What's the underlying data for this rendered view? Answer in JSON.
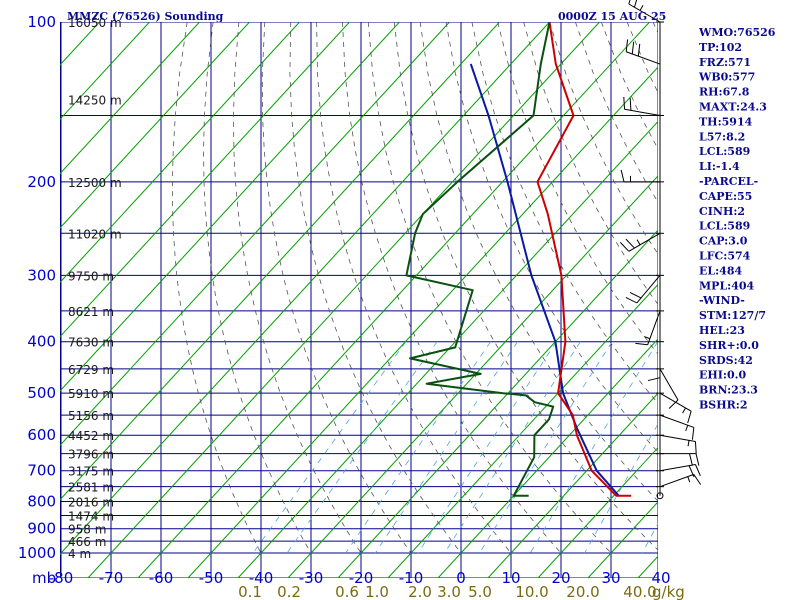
{
  "title": "MMZC (76526) Sounding",
  "datetime": "0000Z 15 AUG 25",
  "colors": {
    "grid": "#00008b",
    "isotherm": "#00a000",
    "dry_adiabat": "#555555",
    "mixing_ratio": "#4ea3e0",
    "temperature": "#cc0000",
    "dewpoint": "#0a5010",
    "parcel": "#0a1aa0",
    "pressure_labels": "#0000cc",
    "mixing_labels": "#7a6a10"
  },
  "chart_data": {
    "type": "skew-t",
    "x_axis_unit_label": "mb",
    "temperature_ticks": [
      -80,
      -70,
      -60,
      -50,
      -40,
      -30,
      -20,
      -10,
      0,
      10,
      20,
      30,
      40
    ],
    "temperature_labels": [
      "-80",
      "-70",
      "-60",
      "-50",
      "-40",
      "-30",
      "-20",
      "-10",
      "0",
      "10",
      "20",
      "30",
      "40"
    ],
    "pressure_levels": [
      100,
      200,
      300,
      400,
      500,
      600,
      700,
      800,
      900,
      1000
    ],
    "pressure_labels": [
      "100",
      "200",
      "300",
      "400",
      "500",
      "600",
      "700",
      "800",
      "900",
      "1000"
    ],
    "height_labels": [
      "16050 m",
      "14250 m",
      "12500 m",
      "11020 m",
      "9750 m",
      "8621 m",
      "7630 m",
      "6729 m",
      "5910 m",
      "5156 m",
      "4452 m",
      "3796 m",
      "3175 m",
      "2581 m",
      "2016 m",
      "1474 m",
      "958 m",
      "466 m",
      "4 m"
    ],
    "mixing_ratio_labels": [
      "0.1",
      "0.2",
      "0.6",
      "1.0",
      "2.0",
      "3.0",
      "5.0",
      "10.0",
      "20.0",
      "40.0"
    ],
    "mixing_ratio_unit": "g/kg",
    "temperature_profile": [
      {
        "p": 100,
        "t": -80
      },
      {
        "p": 120,
        "t": -71
      },
      {
        "p": 150,
        "t": -58
      },
      {
        "p": 200,
        "t": -53
      },
      {
        "p": 230,
        "t": -45
      },
      {
        "p": 300,
        "t": -31
      },
      {
        "p": 400,
        "t": -18
      },
      {
        "p": 500,
        "t": -10
      },
      {
        "p": 550,
        "t": -3
      },
      {
        "p": 600,
        "t": 1.5
      },
      {
        "p": 700,
        "t": 11
      },
      {
        "p": 780,
        "t": 20.5
      },
      {
        "p": 780,
        "t": 23.5
      }
    ],
    "dewpoint_profile": [
      {
        "p": 100,
        "t": -80
      },
      {
        "p": 120,
        "t": -74
      },
      {
        "p": 150,
        "t": -66
      },
      {
        "p": 200,
        "t": -69
      },
      {
        "p": 230,
        "t": -70
      },
      {
        "p": 250,
        "t": -68
      },
      {
        "p": 300,
        "t": -62
      },
      {
        "p": 320,
        "t": -46
      },
      {
        "p": 410,
        "t": -39
      },
      {
        "p": 430,
        "t": -46
      },
      {
        "p": 460,
        "t": -29
      },
      {
        "p": 480,
        "t": -38
      },
      {
        "p": 500,
        "t": -21
      },
      {
        "p": 505,
        "t": -16
      },
      {
        "p": 520,
        "t": -13
      },
      {
        "p": 530,
        "t": -8.5
      },
      {
        "p": 560,
        "t": -7
      },
      {
        "p": 600,
        "t": -7
      },
      {
        "p": 660,
        "t": -3
      },
      {
        "p": 780,
        "t": 0
      },
      {
        "p": 780,
        "t": 3
      }
    ],
    "parcel_profile": [
      {
        "p": 120,
        "t": -88
      },
      {
        "p": 150,
        "t": -75
      },
      {
        "p": 200,
        "t": -59
      },
      {
        "p": 300,
        "t": -37
      },
      {
        "p": 400,
        "t": -20
      },
      {
        "p": 500,
        "t": -9
      },
      {
        "p": 580,
        "t": 0
      },
      {
        "p": 700,
        "t": 12
      },
      {
        "p": 780,
        "t": 21
      }
    ],
    "wind_barbs": [
      {
        "p": 100,
        "dir": 300,
        "spd": 25
      },
      {
        "p": 120,
        "dir": 290,
        "spd": 30
      },
      {
        "p": 150,
        "dir": 280,
        "spd": 20
      },
      {
        "p": 200,
        "dir": 270,
        "spd": 15
      },
      {
        "p": 250,
        "dir": 240,
        "spd": 25
      },
      {
        "p": 300,
        "dir": 220,
        "spd": 20
      },
      {
        "p": 350,
        "dir": 200,
        "spd": 15
      },
      {
        "p": 400,
        "dir": 180,
        "spd": 10
      },
      {
        "p": 450,
        "dir": 150,
        "spd": 10
      },
      {
        "p": 500,
        "dir": 120,
        "spd": 15
      },
      {
        "p": 550,
        "dir": 110,
        "spd": 15
      },
      {
        "p": 600,
        "dir": 100,
        "spd": 15
      },
      {
        "p": 650,
        "dir": 90,
        "spd": 20
      },
      {
        "p": 700,
        "dir": 80,
        "spd": 20
      },
      {
        "p": 750,
        "dir": 70,
        "spd": 15
      }
    ],
    "grid": true
  },
  "indices": [
    "WMO:76526",
    "TP:102",
    "FRZ:571",
    "WB0:577",
    "RH:67.8",
    "MAXT:24.3",
    "TH:5914",
    "L57:8.2",
    "LCL:589",
    "LI:-1.4",
    "-PARCEL-",
    "CAPE:55",
    "CINH:2",
    "LCL:589",
    "CAP:3.0",
    "LFC:574",
    "EL:484",
    "MPL:404",
    "-WIND-",
    "STM:127/7",
    "HEL:23",
    "SHR+:0.0",
    "SRDS:42",
    "EHI:0.0",
    "BRN:23.3",
    "BSHR:2"
  ]
}
